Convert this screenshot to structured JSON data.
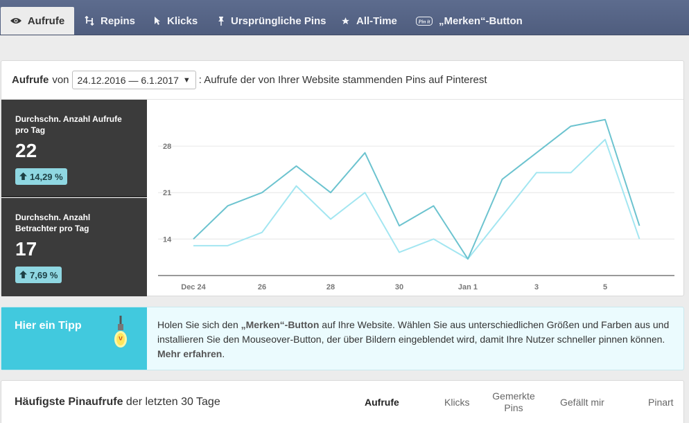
{
  "tabs": [
    {
      "label": "Aufrufe",
      "icon": "eye-icon",
      "active": true
    },
    {
      "label": "Repins",
      "icon": "repin-icon",
      "active": false
    },
    {
      "label": "Klicks",
      "icon": "cursor-icon",
      "active": false
    },
    {
      "label": "Ursprüngliche Pins",
      "icon": "pin-icon",
      "active": false
    },
    {
      "label": "All-Time",
      "icon": "star-icon",
      "active": false
    },
    {
      "label": "„Merken“-Button",
      "icon": "pinit-icon",
      "active": false
    }
  ],
  "header": {
    "title": "Aufrufe",
    "von": "von",
    "date_range": "24.12.2016 — 6.1.2017",
    "description": ": Aufrufe der von Ihrer Website stammenden Pins auf Pinterest"
  },
  "stats": [
    {
      "label": "Durchschn. Anzahl Aufrufe pro Tag",
      "value": "22",
      "change": "14,29 %"
    },
    {
      "label": "Durchschn. Anzahl Betrachter pro Tag",
      "value": "17",
      "change": "7,69 %"
    }
  ],
  "chart_data": {
    "type": "line",
    "x": [
      "Dec 24",
      "25",
      "26",
      "27",
      "28",
      "29",
      "30",
      "31",
      "Jan 1",
      "2",
      "3",
      "4",
      "5",
      "6"
    ],
    "x_tick_labels": [
      "Dec 24",
      "26",
      "28",
      "30",
      "Jan 1",
      "3",
      "5"
    ],
    "y_ticks": [
      14,
      21,
      28
    ],
    "ylim": [
      8.5,
      35
    ],
    "grid": true,
    "colors": {
      "aufrufe": "#6cc3cf",
      "betrachter": "#a3e6f1"
    },
    "series": [
      {
        "key": "aufrufe",
        "values": [
          14,
          19,
          21,
          25,
          21,
          27,
          16,
          19,
          11,
          23,
          27,
          31,
          32,
          16
        ]
      },
      {
        "key": "betrachter",
        "values": [
          13,
          13,
          15,
          22,
          17,
          21,
          12,
          14,
          11,
          17.5,
          24,
          24,
          29,
          14
        ]
      }
    ]
  },
  "tip": {
    "title": "Hier ein Tipp",
    "text_1": "Holen Sie sich den ",
    "link_button": "„Merken“-Button",
    "text_2": " auf Ihre Website. Wählen Sie aus unterschiedlichen Größen und Farben aus und installieren Sie den Mouseover-Button, der über Bildern eingeblendet wird, damit Ihre Nutzer schneller pinnen können. ",
    "link_more": "Mehr erfahren",
    "text_3": "."
  },
  "top_pins": {
    "title_bold": "Häufigste Pinaufrufe",
    "title_rest": " der letzten 30 Tage",
    "columns": [
      {
        "label": "Aufrufe",
        "active": true
      },
      {
        "label": "Klicks",
        "active": false
      },
      {
        "label": "Gemerkte Pins",
        "active": false
      },
      {
        "label": "Gefällt mir",
        "active": false
      },
      {
        "label": "Pinart",
        "active": false
      }
    ]
  }
}
